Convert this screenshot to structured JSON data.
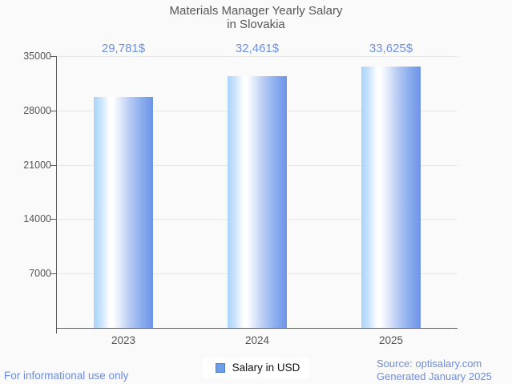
{
  "title": {
    "line1": "Materials Manager Yearly Salary",
    "line2": "in Slovakia"
  },
  "chart_data": {
    "type": "bar",
    "title": "Materials Manager Yearly Salary in Slovakia",
    "categories": [
      "2023",
      "2024",
      "2025"
    ],
    "series": [
      {
        "name": "Salary in USD",
        "values": [
          29781,
          32461,
          33625
        ],
        "value_labels": [
          "29,781$",
          "32,461$",
          "33,625$"
        ]
      }
    ],
    "xlabel": "",
    "ylabel": "",
    "ylim": [
      0,
      35000
    ],
    "yticks": [
      7000,
      14000,
      21000,
      28000,
      35000
    ],
    "grid": true,
    "legend_position": "bottom"
  },
  "legend": {
    "label": "Salary in USD"
  },
  "footer": {
    "disclaimer": "For informational use only",
    "source": "Source: optisalary.com",
    "generated": "Generated January 2025"
  },
  "colors": {
    "background": "#fafafa",
    "title_text": "#565656",
    "axis": "#5c5c5c",
    "gridline": "#e7e7e7",
    "value_label": "#6d93dd",
    "bar_gradient_left": "#a9d3fa",
    "bar_gradient_mid": "#ffffff",
    "bar_gradient_right": "#6e93e8",
    "legend_swatch": "#6d9eea",
    "footer_text": "#6d8ce2"
  }
}
